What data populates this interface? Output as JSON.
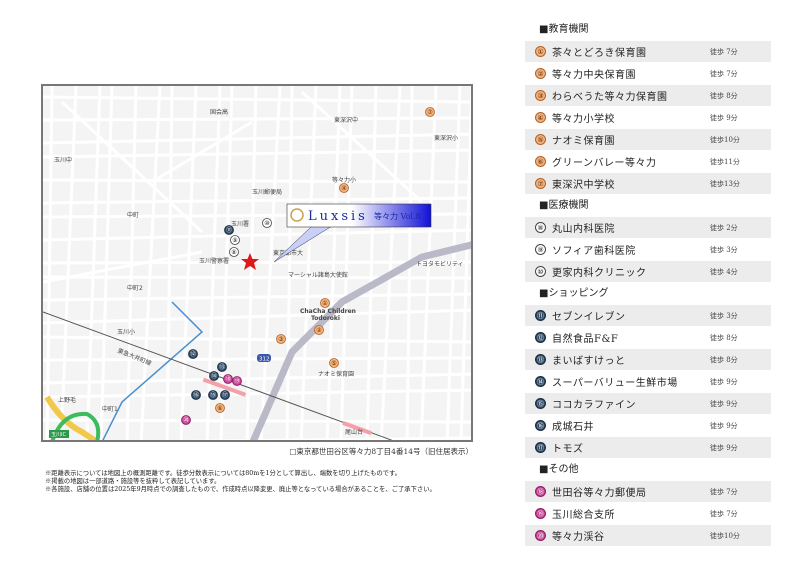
{
  "map": {
    "labels": {
      "kokugakuin": "国会高",
      "higashifukasawa_jh": "東深沢中",
      "higashifukasawa_el": "東深沢小",
      "todoroki_el": "等々力小",
      "tamagawa_post": "玉川郵便局",
      "tamagawa_sho": "玉川署",
      "tamagawa_police": "玉川警察署",
      "tokyo_city_univ": "東京都市大",
      "marshall": "マーシャル諸島大使館",
      "toyota": "トヨタモビリティ",
      "chacha1": "ChaCha Children",
      "chacha2": "Todoroki",
      "naomi": "ナオミ保育園",
      "tamagawa_el": "玉川小",
      "tamagawa_jh": "玉川中",
      "oyamadai": "尾山台",
      "kaminoge": "上野毛",
      "nakamachi": "中町",
      "nakamachi2": "中町2",
      "nakamachi1": "中町1",
      "railway": "東急大井町線",
      "route": "312",
      "ic": "玉川IC"
    },
    "callout": {
      "brand": "Luxsis",
      "name": "等々力 Vol.8"
    },
    "markers": [
      {
        "n": "①",
        "cat": "edu"
      },
      {
        "n": "②",
        "cat": "edu"
      },
      {
        "n": "③",
        "cat": "edu"
      },
      {
        "n": "④",
        "cat": "edu"
      },
      {
        "n": "⑤",
        "cat": "edu"
      },
      {
        "n": "⑥",
        "cat": "edu"
      },
      {
        "n": "⑦",
        "cat": "edu"
      },
      {
        "n": "⑧",
        "cat": "med"
      },
      {
        "n": "⑨",
        "cat": "med"
      },
      {
        "n": "⑩",
        "cat": "med"
      },
      {
        "n": "⑪",
        "cat": "shop"
      },
      {
        "n": "⑫",
        "cat": "shop"
      },
      {
        "n": "⑬",
        "cat": "shop"
      },
      {
        "n": "⑭",
        "cat": "shop"
      },
      {
        "n": "⑮",
        "cat": "shop"
      },
      {
        "n": "⑯",
        "cat": "shop"
      },
      {
        "n": "⑰",
        "cat": "shop"
      },
      {
        "n": "⑱",
        "cat": "oth"
      },
      {
        "n": "⑲",
        "cat": "oth"
      },
      {
        "n": "⑳",
        "cat": "oth"
      }
    ]
  },
  "address": "□東京都世田谷区等々力8丁目4番14号（旧住居表示）",
  "notes": [
    "※距離表示については地図上の概測距離です。徒歩分数表示については80mを1分として算出し、端数を切り上げたものです。",
    "※掲載の地図は一部道路・施設等を抜粋して表記しています。",
    "※各施設、店舗の位置は2025年9月時点での調査したもので、作成時点以降変更、廃止等となっている場合があることを、ご了承下さい。"
  ],
  "colors": {
    "edu": "#f3b27a",
    "med": "#ffffff",
    "shop": "#2d4863",
    "oth": "#c53e93",
    "star": "#e01818"
  },
  "sections": [
    {
      "title": "■教育機関",
      "cat": "edu",
      "items": [
        {
          "n": "①",
          "name": "茶々とどろき保育園",
          "walk": "徒歩 7分"
        },
        {
          "n": "②",
          "name": "等々力中央保育園",
          "walk": "徒歩 7分"
        },
        {
          "n": "③",
          "name": "わらべうた等々力保育園",
          "walk": "徒歩 8分"
        },
        {
          "n": "④",
          "name": "等々力小学校",
          "walk": "徒歩 9分"
        },
        {
          "n": "⑤",
          "name": "ナオミ保育園",
          "walk": "徒歩10分"
        },
        {
          "n": "⑥",
          "name": "グリーンバレー等々力",
          "walk": "徒歩11分"
        },
        {
          "n": "⑦",
          "name": "東深沢中学校",
          "walk": "徒歩13分"
        }
      ]
    },
    {
      "title": "■医療機関",
      "cat": "med",
      "items": [
        {
          "n": "⑧",
          "name": "丸山内科医院",
          "walk": "徒歩 2分"
        },
        {
          "n": "⑨",
          "name": "ソフィア歯科医院",
          "walk": "徒歩 3分"
        },
        {
          "n": "⑩",
          "name": "更家内科クリニック",
          "walk": "徒歩 4分"
        }
      ]
    },
    {
      "title": "■ショッピング",
      "cat": "shop",
      "items": [
        {
          "n": "⑪",
          "name": "セブンイレブン",
          "walk": "徒歩 3分"
        },
        {
          "n": "⑫",
          "name": "自然食品F&F",
          "walk": "徒歩 8分"
        },
        {
          "n": "⑬",
          "name": "まいばすけっと",
          "walk": "徒歩 8分"
        },
        {
          "n": "⑭",
          "name": "スーパーバリュー生鮮市場",
          "walk": "徒歩 9分"
        },
        {
          "n": "⑮",
          "name": "ココカラファイン",
          "walk": "徒歩 9分"
        },
        {
          "n": "⑯",
          "name": "成城石井",
          "walk": "徒歩 9分"
        },
        {
          "n": "⑰",
          "name": "トモズ",
          "walk": "徒歩 9分"
        }
      ]
    },
    {
      "title": "■その他",
      "cat": "oth",
      "items": [
        {
          "n": "⑱",
          "name": "世田谷等々力郵便局",
          "walk": "徒歩 7分"
        },
        {
          "n": "⑲",
          "name": "玉川総合支所",
          "walk": "徒歩 7分"
        },
        {
          "n": "⑳",
          "name": "等々力渓谷",
          "walk": "徒歩10分"
        }
      ]
    }
  ]
}
